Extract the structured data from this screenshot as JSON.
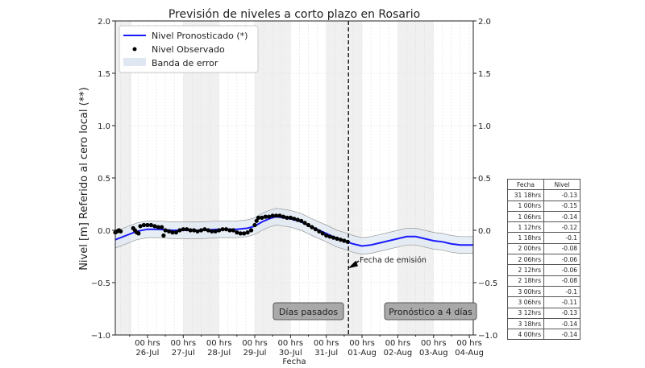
{
  "chart_data": {
    "type": "line",
    "title": "Previsión de niveles a corto plazo en Rosario",
    "xlabel": "Fecha",
    "ylabel": "Nivel [m] Referido al cero local (**)",
    "ylim": [
      -1.0,
      2.0
    ],
    "xlim_days_from_26jul": [
      -0.9,
      9.11
    ],
    "yticks": [
      "2.0",
      "1.5",
      "1.0",
      "0.5",
      "0.0",
      "−0.5",
      "−1.0"
    ],
    "ytick_values": [
      2.0,
      1.5,
      1.0,
      0.5,
      0.0,
      -0.5,
      -1.0
    ],
    "xticks": [
      {
        "day": 0,
        "line1": "00 hrs",
        "line2": "26-Jul"
      },
      {
        "day": 1,
        "line1": "00 hrs",
        "line2": "27-Jul"
      },
      {
        "day": 2,
        "line1": "00 hrs",
        "line2": "28-Jul"
      },
      {
        "day": 3,
        "line1": "00 hrs",
        "line2": "29-Jul"
      },
      {
        "day": 4,
        "line1": "00 hrs",
        "line2": "30-Jul"
      },
      {
        "day": 5,
        "line1": "00 hrs",
        "line2": "31-Jul"
      },
      {
        "day": 6,
        "line1": "00 hrs",
        "line2": "01-Aug"
      },
      {
        "day": 7,
        "line1": "00 hrs",
        "line2": "02-Aug"
      },
      {
        "day": 8,
        "line1": "00 hrs",
        "line2": "03-Aug"
      },
      {
        "day": 9,
        "line1": "00 hrs",
        "line2": "04-Aug"
      }
    ],
    "shaded_day_ranges": [
      [
        -0.9,
        -0.45
      ],
      [
        1,
        2
      ],
      [
        3,
        4
      ],
      [
        5,
        6
      ],
      [
        7,
        8
      ]
    ],
    "grid": true,
    "legend": {
      "placement": "top-left",
      "entries": [
        "Nivel Pronosticado (*)",
        "Nivel Observado",
        "Banda de error"
      ]
    },
    "colors": {
      "forecast": "#1a1aff",
      "observed": "#000000",
      "band": "#dfe8f2",
      "shade": "#f0f0f0"
    },
    "error_band_halfwidth": 0.08,
    "forecast": [
      [
        -0.9,
        -0.09
      ],
      [
        -0.6,
        -0.05
      ],
      [
        -0.3,
        -0.01
      ],
      [
        0,
        0.01
      ],
      [
        0.3,
        0.01
      ],
      [
        0.7,
        0.0
      ],
      [
        1,
        0.0
      ],
      [
        1.5,
        0.0
      ],
      [
        2,
        0.01
      ],
      [
        2.5,
        0.01
      ],
      [
        2.8,
        0.02
      ],
      [
        3.0,
        0.04
      ],
      [
        3.2,
        0.08
      ],
      [
        3.4,
        0.11
      ],
      [
        3.6,
        0.13
      ],
      [
        3.8,
        0.12
      ],
      [
        4.0,
        0.11
      ],
      [
        4.3,
        0.08
      ],
      [
        4.6,
        0.03
      ],
      [
        5.0,
        -0.03
      ],
      [
        5.3,
        -0.08
      ],
      [
        5.5,
        -0.1
      ],
      [
        5.75,
        -0.13
      ],
      [
        6,
        -0.15
      ],
      [
        6.25,
        -0.14
      ],
      [
        6.5,
        -0.12
      ],
      [
        6.75,
        -0.1
      ],
      [
        7,
        -0.08
      ],
      [
        7.25,
        -0.06
      ],
      [
        7.5,
        -0.06
      ],
      [
        7.75,
        -0.08
      ],
      [
        8,
        -0.1
      ],
      [
        8.25,
        -0.11
      ],
      [
        8.5,
        -0.13
      ],
      [
        8.75,
        -0.14
      ],
      [
        9,
        -0.14
      ],
      [
        9.11,
        -0.14
      ]
    ],
    "observed": [
      [
        -0.9,
        -0.02
      ],
      [
        -0.85,
        -0.01
      ],
      [
        -0.8,
        0.0
      ],
      [
        -0.75,
        -0.01
      ],
      [
        -0.4,
        0.02
      ],
      [
        -0.35,
        0.0
      ],
      [
        -0.3,
        -0.02
      ],
      [
        -0.25,
        -0.03
      ],
      [
        -0.2,
        0.04
      ],
      [
        -0.1,
        0.05
      ],
      [
        0,
        0.05
      ],
      [
        0.1,
        0.05
      ],
      [
        0.2,
        0.04
      ],
      [
        0.3,
        0.03
      ],
      [
        0.4,
        0.03
      ],
      [
        0.45,
        -0.05
      ],
      [
        0.5,
        0.0
      ],
      [
        0.6,
        -0.01
      ],
      [
        0.7,
        -0.02
      ],
      [
        0.8,
        -0.02
      ],
      [
        0.9,
        0.0
      ],
      [
        1.0,
        0.01
      ],
      [
        1.1,
        0.01
      ],
      [
        1.2,
        0.0
      ],
      [
        1.3,
        0.0
      ],
      [
        1.4,
        -0.01
      ],
      [
        1.5,
        0.0
      ],
      [
        1.6,
        0.01
      ],
      [
        1.7,
        0.0
      ],
      [
        1.8,
        -0.01
      ],
      [
        1.9,
        -0.01
      ],
      [
        2.0,
        0.0
      ],
      [
        2.1,
        0.01
      ],
      [
        2.2,
        0.01
      ],
      [
        2.3,
        0.0
      ],
      [
        2.4,
        0.0
      ],
      [
        2.5,
        -0.02
      ],
      [
        2.6,
        -0.03
      ],
      [
        2.7,
        -0.03
      ],
      [
        2.8,
        -0.02
      ],
      [
        2.9,
        0.0
      ],
      [
        3.0,
        0.05
      ],
      [
        3.05,
        0.09
      ],
      [
        3.1,
        0.12
      ],
      [
        3.2,
        0.12
      ],
      [
        3.3,
        0.13
      ],
      [
        3.4,
        0.13
      ],
      [
        3.5,
        0.14
      ],
      [
        3.6,
        0.14
      ],
      [
        3.7,
        0.14
      ],
      [
        3.8,
        0.13
      ],
      [
        3.9,
        0.12
      ],
      [
        4.0,
        0.12
      ],
      [
        4.1,
        0.11
      ],
      [
        4.2,
        0.1
      ],
      [
        4.3,
        0.09
      ],
      [
        4.4,
        0.07
      ],
      [
        4.5,
        0.05
      ],
      [
        4.6,
        0.03
      ],
      [
        4.7,
        0.01
      ],
      [
        4.8,
        -0.01
      ],
      [
        4.9,
        -0.03
      ],
      [
        5.0,
        -0.05
      ],
      [
        5.1,
        -0.06
      ],
      [
        5.2,
        -0.07
      ],
      [
        5.3,
        -0.08
      ],
      [
        5.4,
        -0.09
      ],
      [
        5.5,
        -0.1
      ],
      [
        5.6,
        -0.11
      ]
    ],
    "emission_day": 5.62,
    "annotations": {
      "emission": "Fecha de emisión",
      "past": "Días pasados",
      "forecast_box": "Pronóstico a 4 días"
    }
  },
  "table": {
    "headers": [
      "Fecha",
      "Nivel"
    ],
    "rows": [
      [
        "31 18hrs",
        "-0.13"
      ],
      [
        "1 00hrs",
        "-0.15"
      ],
      [
        "1 06hrs",
        "-0.14"
      ],
      [
        "1 12hrs",
        "-0.12"
      ],
      [
        "1 18hrs",
        "-0.1"
      ],
      [
        "2 00hrs",
        "-0.08"
      ],
      [
        "2 06hrs",
        "-0.06"
      ],
      [
        "2 12hrs",
        "-0.06"
      ],
      [
        "2 18hrs",
        "-0.08"
      ],
      [
        "3 00hrs",
        "-0.1"
      ],
      [
        "3 06hrs",
        "-0.11"
      ],
      [
        "3 12hrs",
        "-0.13"
      ],
      [
        "3 18hrs",
        "-0.14"
      ],
      [
        "4 00hrs",
        "-0.14"
      ]
    ]
  }
}
